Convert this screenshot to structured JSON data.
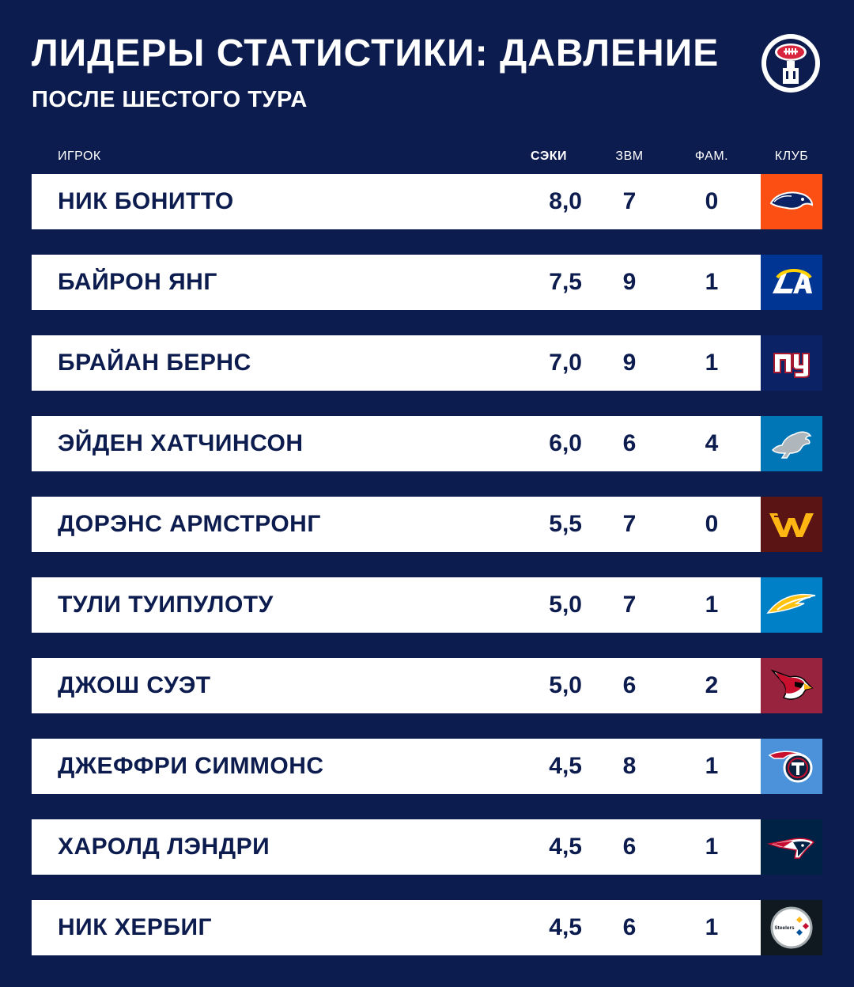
{
  "header": {
    "title": "ЛИДЕРЫ СТАТИСТИКИ: ДАВЛЕНИЕ",
    "subtitle": "ПОСЛЕ ШЕСТОГО ТУРА"
  },
  "brand": {
    "icon": "football-fork-icon"
  },
  "columns": {
    "player": "ИГРОК",
    "sacks": "СЭКИ",
    "qb_hits": "ЗВМ",
    "fumbles": "ФАМ.",
    "club": "КЛУБ"
  },
  "rows": [
    {
      "name": "НИК БОНИТТО",
      "sacks": "8,0",
      "qb_hits": "7",
      "fumbles": "0",
      "club_icon": "broncos-logo-icon",
      "club_color": "#fb4f14"
    },
    {
      "name": "БАЙРОН ЯНГ",
      "sacks": "7,5",
      "qb_hits": "9",
      "fumbles": "1",
      "club_icon": "rams-logo-icon",
      "club_color": "#003594"
    },
    {
      "name": "БРАЙАН БЕРНС",
      "sacks": "7,0",
      "qb_hits": "9",
      "fumbles": "1",
      "club_icon": "giants-logo-icon",
      "club_color": "#0b2265"
    },
    {
      "name": "ЭЙДЕН ХАТЧИНСОН",
      "sacks": "6,0",
      "qb_hits": "6",
      "fumbles": "4",
      "club_icon": "lions-logo-icon",
      "club_color": "#0076b6"
    },
    {
      "name": "ДОРЭНС АРМСТРОНГ",
      "sacks": "5,5",
      "qb_hits": "7",
      "fumbles": "0",
      "club_icon": "commanders-logo-icon",
      "club_color": "#5a1414"
    },
    {
      "name": "ТУЛИ ТУИПУЛОТУ",
      "sacks": "5,0",
      "qb_hits": "7",
      "fumbles": "1",
      "club_icon": "chargers-logo-icon",
      "club_color": "#0080c6"
    },
    {
      "name": "ДЖОШ СУЭТ",
      "sacks": "5,0",
      "qb_hits": "6",
      "fumbles": "2",
      "club_icon": "cardinals-logo-icon",
      "club_color": "#97233f"
    },
    {
      "name": "ДЖЕФФРИ СИММОНС",
      "sacks": "4,5",
      "qb_hits": "8",
      "fumbles": "1",
      "club_icon": "titans-logo-icon",
      "club_color": "#4b92db"
    },
    {
      "name": "ХАРОЛД ЛЭНДРИ",
      "sacks": "4,5",
      "qb_hits": "6",
      "fumbles": "1",
      "club_icon": "patriots-logo-icon",
      "club_color": "#002244"
    },
    {
      "name": "НИК ХЕРБИГ",
      "sacks": "4,5",
      "qb_hits": "6",
      "fumbles": "1",
      "club_icon": "steelers-logo-icon",
      "club_color": "#101820"
    }
  ]
}
